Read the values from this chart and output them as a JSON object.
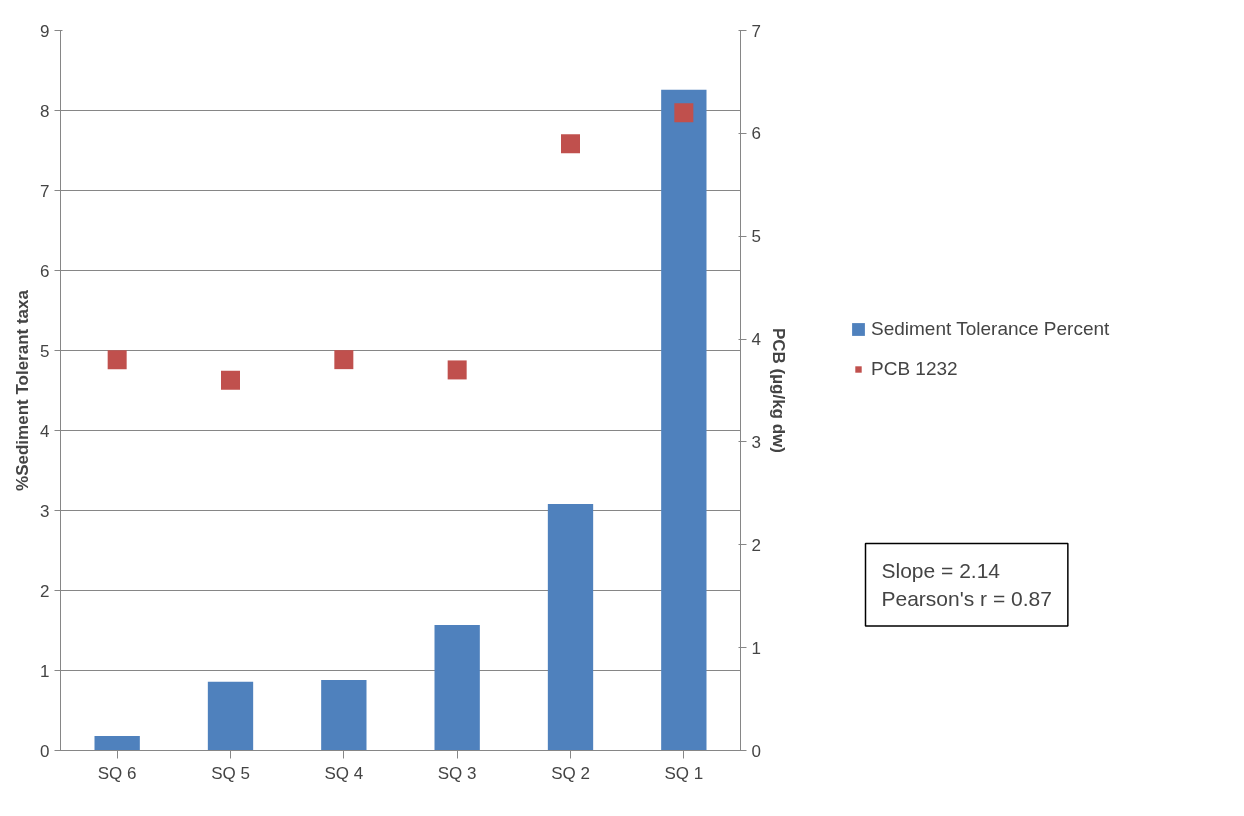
{
  "chart_data": {
    "type": "bar",
    "categories": [
      "SQ 6",
      "SQ 5",
      "SQ 4",
      "SQ 3",
      "SQ 2",
      "SQ 1"
    ],
    "series": [
      {
        "name": "Sediment Tolerance Percent",
        "color": "#4f81bd",
        "values": [
          0.18,
          0.86,
          0.88,
          1.57,
          3.08,
          8.26
        ]
      },
      {
        "name": "PCB 1232",
        "type": "scatter",
        "axis": "y2",
        "color": "#c0504d",
        "values": [
          3.8,
          3.6,
          3.8,
          3.7,
          5.9,
          6.2
        ]
      }
    ],
    "ylabel": "%Sediment Tolerant taxa",
    "y2label": "PCB (µg/kg dw)",
    "ylim": [
      0,
      9
    ],
    "yticks": [
      0,
      1,
      2,
      3,
      4,
      5,
      6,
      7,
      8,
      9
    ],
    "y2lim": [
      0,
      7
    ],
    "y2ticks": [
      0,
      1,
      2,
      3,
      4,
      5,
      6,
      7
    ],
    "grid": "y",
    "legend": "right",
    "marker": "square",
    "annotations": [
      "Slope = 2.14",
      "Pearson's r = 0.87"
    ]
  }
}
